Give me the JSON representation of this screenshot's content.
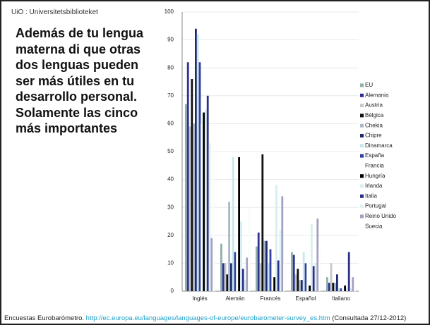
{
  "logo": "UiO : Universitetsbiblioteket",
  "heading": "Además de tu lengua materna di que otras dos lenguas pueden ser más útiles en tu desarrollo personal. Solamente las cinco más importantes",
  "footer": {
    "prefix": "Encuestas Eurobarómetro.",
    "link": "http://ec.europa.eu/languages/languages-of-europe/eurobarometer-survey_es.htm",
    "suffix": "(Consultada 27/12-2012)"
  },
  "chart_data": {
    "type": "bar",
    "categories": [
      "Inglés",
      "Alemán",
      "Francés",
      "Español",
      "Italiano"
    ],
    "ylim": [
      0,
      100
    ],
    "yticks": [
      0,
      10,
      20,
      30,
      40,
      50,
      60,
      70,
      80,
      90,
      100
    ],
    "grid": true,
    "legend": "right",
    "series": [
      {
        "name": "EU",
        "color": "#8fb0ab",
        "values": [
          67,
          17,
          16,
          14,
          5
        ]
      },
      {
        "name": "Alemania",
        "color": "#2e3192",
        "values": [
          82,
          10,
          21,
          13,
          3
        ]
      },
      {
        "name": "Austria",
        "color": "#c8c8c8",
        "values": [
          59,
          10,
          10,
          6,
          10
        ]
      },
      {
        "name": "Bélgica",
        "color": "#111111",
        "values": [
          76,
          6,
          49,
          8,
          3
        ]
      },
      {
        "name": "Chekia",
        "color": "#a8b8c8",
        "values": [
          60,
          32,
          18,
          4,
          3
        ]
      },
      {
        "name": "Chipre",
        "color": "#1f2a6e",
        "values": [
          94,
          10,
          18,
          4,
          6
        ]
      },
      {
        "name": "Dinamarca",
        "color": "#c5e8ee",
        "values": [
          92,
          48,
          10,
          14,
          1
        ]
      },
      {
        "name": "España",
        "color": "#3040a0",
        "values": [
          82,
          14,
          15,
          10,
          1
        ]
      },
      {
        "name": "Francia",
        "color": "#ffffff",
        "values": [
          60,
          20,
          0,
          24,
          3
        ]
      },
      {
        "name": "Hungría",
        "color": "#000000",
        "values": [
          64,
          48,
          5,
          2,
          2
        ]
      },
      {
        "name": "Irlanda",
        "color": "#d8eef0",
        "values": [
          65,
          25,
          38,
          24,
          1
        ]
      },
      {
        "name": "Italia",
        "color": "#2a2f8a",
        "values": [
          70,
          8,
          11,
          9,
          14
        ]
      },
      {
        "name": "Portugal",
        "color": "#e0f0f4",
        "values": [
          53,
          4,
          22,
          10,
          1
        ]
      },
      {
        "name": "Reino Unido",
        "color": "#a0a0c0",
        "values": [
          19,
          12,
          34,
          26,
          5
        ]
      },
      {
        "name": "Suecia",
        "color": "#ffffff",
        "values": [
          50,
          30,
          10,
          15,
          2
        ]
      }
    ]
  }
}
